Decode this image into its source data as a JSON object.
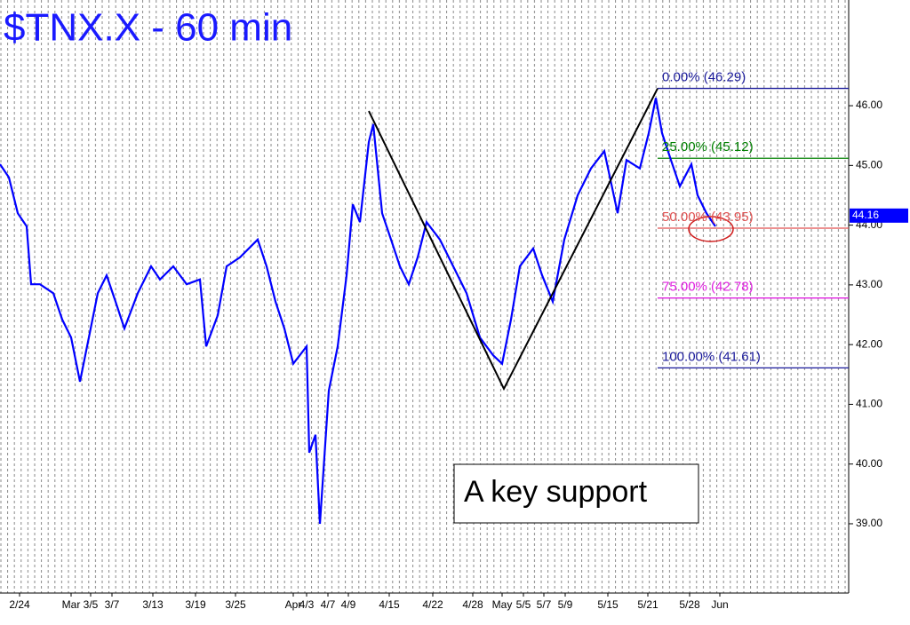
{
  "chart_data": {
    "type": "line",
    "title": "$TNX.X - 60 min",
    "color": "#0000ff",
    "x": [
      0,
      1,
      2,
      3,
      3.5,
      4.5,
      6,
      7,
      8,
      9,
      10,
      11,
      12,
      13,
      14,
      15.5,
      17,
      18,
      19.5,
      21,
      22.5,
      23.2,
      24.5,
      25.5,
      27,
      29,
      30,
      31,
      32,
      33,
      34.5,
      34.8,
      35.5,
      36,
      37,
      38,
      39,
      39.7,
      40.5,
      41.5,
      42,
      43,
      44,
      45,
      46,
      47,
      48,
      49.5,
      51,
      52.5,
      54,
      55.5,
      56.5,
      57.5,
      58.5,
      60,
      61,
      62.2,
      63.5,
      65,
      66.5,
      68,
      69.5,
      70.5,
      72,
      73,
      73.8,
      74.5,
      75.5,
      76.5,
      77.8,
      78.5,
      79.5,
      80.5
    ],
    "values": [
      45.02,
      44.8,
      44.2,
      43.98,
      43.01,
      43.01,
      42.86,
      42.42,
      42.12,
      41.38,
      42.12,
      42.86,
      43.16,
      42.72,
      42.27,
      42.86,
      43.31,
      43.09,
      43.31,
      43.01,
      43.09,
      41.97,
      42.49,
      43.31,
      43.46,
      43.76,
      43.31,
      42.72,
      42.27,
      41.68,
      41.97,
      40.19,
      40.49,
      39.0,
      41.23,
      41.97,
      43.16,
      44.35,
      44.05,
      45.39,
      45.69,
      44.2,
      43.76,
      43.31,
      43.01,
      43.46,
      44.05,
      43.76,
      43.31,
      42.86,
      42.12,
      41.82,
      41.68,
      42.42,
      43.31,
      43.61,
      43.16,
      42.72,
      43.76,
      44.5,
      44.95,
      45.24,
      44.2,
      45.09,
      44.95,
      45.54,
      46.13,
      45.54,
      45.09,
      44.65,
      45.02,
      44.5,
      44.2,
      43.98
    ],
    "xlim": [
      0,
      95.5
    ],
    "ylim": [
      37.84,
      47.77
    ],
    "yticks": [
      {
        "value": 39,
        "label": "39.00"
      },
      {
        "value": 40,
        "label": "40.00"
      },
      {
        "value": 41,
        "label": "41.00"
      },
      {
        "value": 42,
        "label": "42.00"
      },
      {
        "value": 43,
        "label": "43.00"
      },
      {
        "value": 44,
        "label": "44.00"
      },
      {
        "value": 45,
        "label": "45.00"
      },
      {
        "value": 46,
        "label": "46.00"
      }
    ],
    "xticks": [
      {
        "value": 2.2,
        "label": "2/24"
      },
      {
        "value": 8.0,
        "label": "Mar"
      },
      {
        "value": 10.2,
        "label": "3/5"
      },
      {
        "value": 12.6,
        "label": "3/7"
      },
      {
        "value": 17.2,
        "label": "3/13"
      },
      {
        "value": 22.0,
        "label": "3/19"
      },
      {
        "value": 26.5,
        "label": "3/25"
      },
      {
        "value": 33.0,
        "label": "Apr"
      },
      {
        "value": 34.5,
        "label": "4/3"
      },
      {
        "value": 36.9,
        "label": "4/7"
      },
      {
        "value": 39.2,
        "label": "4/9"
      },
      {
        "value": 43.8,
        "label": "4/15"
      },
      {
        "value": 48.7,
        "label": "4/22"
      },
      {
        "value": 53.2,
        "label": "4/28"
      },
      {
        "value": 56.5,
        "label": "May"
      },
      {
        "value": 58.9,
        "label": "5/5"
      },
      {
        "value": 61.2,
        "label": "5/7"
      },
      {
        "value": 63.6,
        "label": "5/9"
      },
      {
        "value": 68.4,
        "label": "5/15"
      },
      {
        "value": 72.9,
        "label": "5/21"
      },
      {
        "value": 77.6,
        "label": "5/28"
      },
      {
        "value": 81.0,
        "label": "Jun"
      }
    ],
    "zigzag": {
      "x": [
        41.5,
        56.7,
        74.0
      ],
      "values": [
        45.91,
        41.26,
        46.29
      ],
      "color": "#000000"
    },
    "levels": [
      {
        "label": "0.00% (46.29)",
        "value": 46.29,
        "color": "#1a1a9a"
      },
      {
        "label": "25.00% (45.12)",
        "value": 45.12,
        "color": "#008000"
      },
      {
        "label": "50.00% (43.95)",
        "value": 43.95,
        "color": "#e05050"
      },
      {
        "label": "75.00% (42.78)",
        "value": 42.78,
        "color": "#e020e0"
      },
      {
        "label": "100.00% (41.61)",
        "value": 41.61,
        "color": "#1a1a9a"
      }
    ],
    "levels_start": 74.0,
    "last_price": {
      "value": 44.16,
      "label": "44.16"
    },
    "annotation": "A key support"
  }
}
